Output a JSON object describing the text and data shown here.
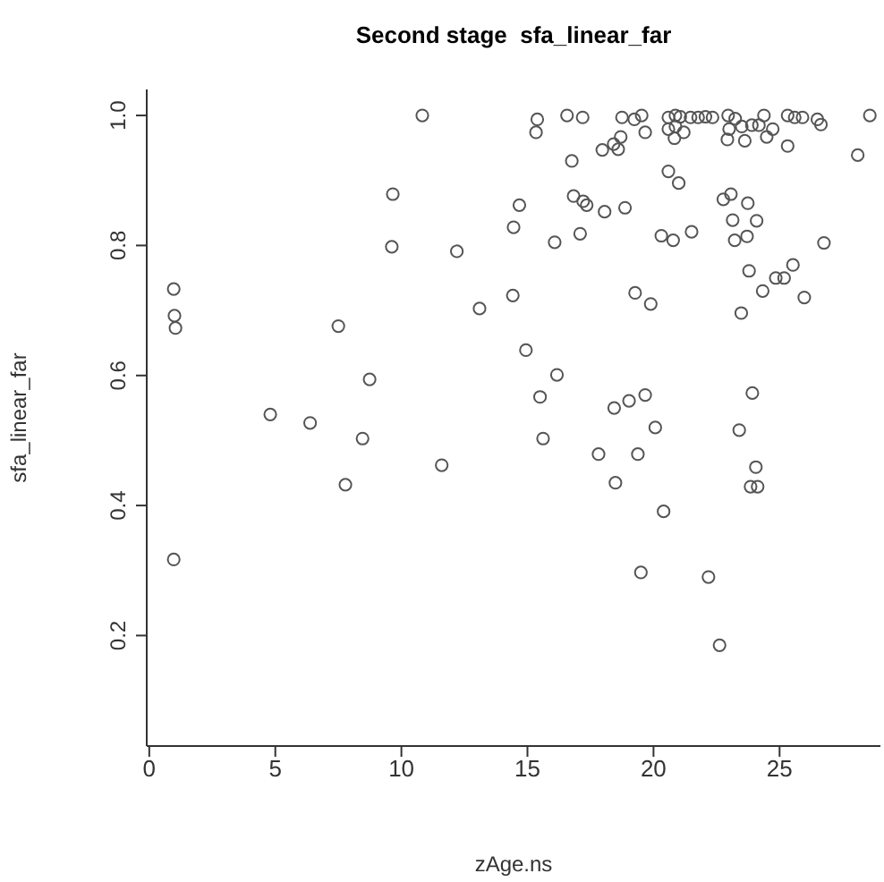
{
  "chart_data": {
    "type": "scatter",
    "title": "Second stage  sfa_linear_far",
    "xlabel": "zAge.ns",
    "ylabel": "sfa_linear_far",
    "xlim": [
      -0.1,
      29
    ],
    "ylim": [
      0.03,
      1.04
    ],
    "xticks": [
      0,
      5,
      10,
      15,
      20,
      25
    ],
    "yticks": [
      0.2,
      0.4,
      0.6,
      {
        "value": 0.8,
        "label": "0.8"
      },
      {
        "value": 1,
        "label": "1.0"
      }
    ],
    "grid": false,
    "legend": false,
    "marker": "circle",
    "series": [
      {
        "color": "#555555",
        "x": [
          0.97,
          1.0,
          1.04,
          10.83,
          9.66,
          9.62,
          7.5,
          8.74,
          4.8,
          6.38,
          8.46,
          7.78,
          11.6,
          0.97,
          15.39,
          15.34,
          16.57,
          17.19,
          18.75,
          19.24,
          19.53,
          19.67,
          18.7,
          18.42,
          17.97,
          18.6,
          20.59,
          20.87,
          21.06,
          21.47,
          21.77,
          22.06,
          22.34,
          20.59,
          20.87,
          21.2,
          20.83,
          22.96,
          23.24,
          23.0,
          23.5,
          23.9,
          24.18,
          24.38,
          24.73,
          24.49,
          22.93,
          23.62,
          25.32,
          25.6,
          25.91,
          26.5,
          26.64,
          25.32,
          28.58,
          28.1,
          16.76,
          20.59,
          21.0,
          14.68,
          16.83,
          17.21,
          17.35,
          18.06,
          18.87,
          22.77,
          23.07,
          23.74,
          14.45,
          16.08,
          17.09,
          20.31,
          20.78,
          21.51,
          23.14,
          24.09,
          23.71,
          23.22,
          26.76,
          12.2,
          23.79,
          25.53,
          24.85,
          25.18,
          24.33,
          25.98,
          14.42,
          13.1,
          19.27,
          19.89,
          23.48,
          14.94,
          16.17,
          15.5,
          18.44,
          19.03,
          19.67,
          23.92,
          15.62,
          20.07,
          23.4,
          17.82,
          19.38,
          24.06,
          18.49,
          23.85,
          24.13,
          20.4,
          19.5,
          22.18,
          22.62
        ],
        "values": [
          0.733,
          0.692,
          0.673,
          1.0,
          0.879,
          0.798,
          0.676,
          0.594,
          0.54,
          0.527,
          0.503,
          0.432,
          0.462,
          0.317,
          0.994,
          0.974,
          1.0,
          0.997,
          0.997,
          0.994,
          1.0,
          0.974,
          0.967,
          0.956,
          0.947,
          0.948,
          0.997,
          1.0,
          0.998,
          0.997,
          0.997,
          0.998,
          0.997,
          0.979,
          0.983,
          0.974,
          0.965,
          1.0,
          0.995,
          0.979,
          0.983,
          0.985,
          0.985,
          1.0,
          0.979,
          0.967,
          0.963,
          0.961,
          1.0,
          0.997,
          0.997,
          0.994,
          0.986,
          0.953,
          1.0,
          0.939,
          0.93,
          0.914,
          0.896,
          0.862,
          0.876,
          0.868,
          0.862,
          0.852,
          0.858,
          0.871,
          0.879,
          0.865,
          0.828,
          0.805,
          0.818,
          0.815,
          0.808,
          0.821,
          0.839,
          0.838,
          0.814,
          0.808,
          0.804,
          0.791,
          0.761,
          0.77,
          0.75,
          0.75,
          0.73,
          0.72,
          0.723,
          0.703,
          0.727,
          0.71,
          0.696,
          0.639,
          0.601,
          0.567,
          0.55,
          0.561,
          0.57,
          0.573,
          0.503,
          0.52,
          0.516,
          0.479,
          0.479,
          0.459,
          0.435,
          0.429,
          0.429,
          0.391,
          0.297,
          0.29,
          0.185
        ]
      }
    ]
  }
}
